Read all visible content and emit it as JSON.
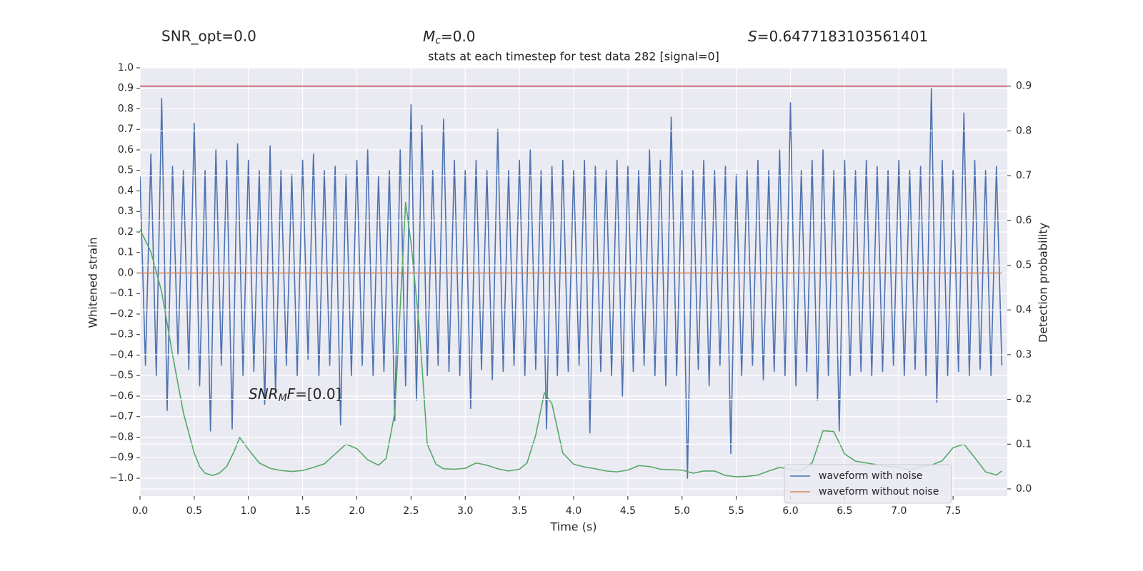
{
  "chart_data": {
    "type": "line",
    "title": "stats at each timestep for test data 282 [signal=0]",
    "xlabel": "Time (s)",
    "ylabel": "Whitened strain",
    "y2label": "Detection probability",
    "annotations": {
      "snr_opt": "SNR_opt=0.0",
      "mc": {
        "symbol": "M",
        "sub": "c",
        "text": "=0.0"
      },
      "s": {
        "symbol": "S",
        "text": "=0.6477183103561401"
      },
      "snr_mf": {
        "symbol": "SNR",
        "sub": "M",
        "symbol2": "F",
        "text": "=[0.0]"
      }
    },
    "xlim": [
      0,
      8.0
    ],
    "ylim": [
      -1.087,
      1.0
    ],
    "y2lim": [
      -0.016,
      0.941
    ],
    "grid": true,
    "legend": "lower right",
    "xticks": [
      {
        "value": 0,
        "label": "0.0"
      },
      0.5,
      {
        "value": 1,
        "label": "1.0"
      },
      1.5,
      {
        "value": 2,
        "label": "2.0"
      },
      2.5,
      {
        "value": 3,
        "label": "3.0"
      },
      3.5,
      {
        "value": 4,
        "label": "4.0"
      },
      4.5,
      {
        "value": 5,
        "label": "5.0"
      },
      5.5,
      {
        "value": 6,
        "label": "6.0"
      },
      6.5,
      {
        "value": 7,
        "label": "7.0"
      },
      7.5
    ],
    "yticks": [
      {
        "value": -1.0,
        "label": "−1.0"
      },
      {
        "value": -0.9,
        "label": "−0.9"
      },
      {
        "value": -0.8,
        "label": "−0.8"
      },
      {
        "value": -0.7,
        "label": "−0.7"
      },
      {
        "value": -0.6,
        "label": "−0.6"
      },
      {
        "value": -0.5,
        "label": "−0.5"
      },
      {
        "value": -0.4,
        "label": "−0.4"
      },
      {
        "value": -0.3,
        "label": "−0.3"
      },
      {
        "value": -0.2,
        "label": "−0.2"
      },
      {
        "value": -0.1,
        "label": "−0.1"
      },
      {
        "value": 0,
        "label": "0.0"
      },
      0.1,
      0.2,
      0.3,
      0.4,
      0.5,
      0.6,
      0.7,
      0.8,
      0.9,
      {
        "value": 1.0,
        "label": "1.0"
      }
    ],
    "y2ticks": [
      {
        "value": 0,
        "label": "0.0"
      },
      0.1,
      0.2,
      0.3,
      0.4,
      0.5,
      0.6,
      0.7,
      0.8,
      0.9
    ],
    "hline": {
      "value": 0.9,
      "axis": "y2",
      "color": "#c44e52"
    },
    "series": [
      {
        "name": "waveform with noise",
        "color": "#4c72b0",
        "x": [
          0,
          0.05,
          0.1,
          0.15,
          0.2,
          0.25,
          0.3,
          0.35,
          0.4,
          0.45,
          0.5,
          0.55,
          0.6,
          0.65,
          0.7,
          0.75,
          0.8,
          0.85,
          0.9,
          0.95,
          1,
          1.05,
          1.1,
          1.15,
          1.2,
          1.25,
          1.3,
          1.35,
          1.4,
          1.45,
          1.5,
          1.55,
          1.6,
          1.65,
          1.7,
          1.75,
          1.8,
          1.85,
          1.9,
          1.95,
          2,
          2.05,
          2.1,
          2.15,
          2.2,
          2.25,
          2.3,
          2.35,
          2.4,
          2.45,
          2.5,
          2.55,
          2.6,
          2.65,
          2.7,
          2.75,
          2.8,
          2.85,
          2.9,
          2.95,
          3,
          3.05,
          3.1,
          3.15,
          3.2,
          3.25,
          3.3,
          3.35,
          3.4,
          3.45,
          3.5,
          3.55,
          3.6,
          3.65,
          3.7,
          3.75,
          3.8,
          3.85,
          3.9,
          3.95,
          4,
          4.05,
          4.1,
          4.15,
          4.2,
          4.25,
          4.3,
          4.35,
          4.4,
          4.45,
          4.5,
          4.55,
          4.6,
          4.65,
          4.7,
          4.75,
          4.8,
          4.85,
          4.9,
          4.95,
          5,
          5.05,
          5.1,
          5.15,
          5.2,
          5.25,
          5.3,
          5.35,
          5.4,
          5.45,
          5.5,
          5.55,
          5.6,
          5.65,
          5.7,
          5.75,
          5.8,
          5.85,
          5.9,
          5.95,
          6,
          6.05,
          6.1,
          6.15,
          6.2,
          6.25,
          6.3,
          6.35,
          6.4,
          6.45,
          6.5,
          6.55,
          6.6,
          6.65,
          6.7,
          6.75,
          6.8,
          6.85,
          6.9,
          6.95,
          7,
          7.05,
          7.1,
          7.15,
          7.2,
          7.25,
          7.3,
          7.35,
          7.4,
          7.45,
          7.5,
          7.55,
          7.6,
          7.65,
          7.7,
          7.75,
          7.8,
          7.85,
          7.9,
          7.95
        ],
        "values": [
          0.47,
          -0.45,
          0.58,
          -0.5,
          0.85,
          -0.67,
          0.52,
          -0.4,
          0.5,
          -0.47,
          0.73,
          -0.55,
          0.5,
          -0.77,
          0.6,
          -0.45,
          0.55,
          -0.76,
          0.63,
          -0.5,
          0.55,
          -0.48,
          0.5,
          -0.64,
          0.62,
          -0.58,
          0.5,
          -0.45,
          0.48,
          -0.5,
          0.55,
          -0.42,
          0.58,
          -0.5,
          0.5,
          -0.45,
          0.52,
          -0.74,
          0.48,
          -0.5,
          0.55,
          -0.45,
          0.6,
          -0.5,
          0.47,
          -0.48,
          0.5,
          -0.72,
          0.6,
          -0.55,
          0.82,
          -0.62,
          0.72,
          -0.5,
          0.5,
          -0.45,
          0.75,
          -0.48,
          0.55,
          -0.5,
          0.5,
          -0.66,
          0.55,
          -0.47,
          0.5,
          -0.52,
          0.7,
          -0.48,
          0.5,
          -0.45,
          0.55,
          -0.5,
          0.6,
          -0.47,
          0.5,
          -0.76,
          0.52,
          -0.5,
          0.55,
          -0.48,
          0.5,
          -0.45,
          0.55,
          -0.78,
          0.52,
          -0.48,
          0.5,
          -0.5,
          0.55,
          -0.6,
          0.52,
          -0.48,
          0.5,
          -0.45,
          0.6,
          -0.5,
          0.55,
          -0.55,
          0.76,
          -0.5,
          0.5,
          -1.0,
          0.5,
          -0.47,
          0.55,
          -0.55,
          0.5,
          -0.45,
          0.52,
          -0.88,
          0.48,
          -0.5,
          0.5,
          -0.45,
          0.55,
          -0.52,
          0.5,
          -0.48,
          0.6,
          -0.5,
          0.83,
          -0.55,
          0.5,
          -0.48,
          0.55,
          -0.62,
          0.6,
          -0.5,
          0.5,
          -0.77,
          0.55,
          -0.5,
          0.5,
          -0.48,
          0.55,
          -0.5,
          0.52,
          -0.48,
          0.5,
          -0.45,
          0.55,
          -0.5,
          0.5,
          -0.47,
          0.52,
          -0.5,
          0.9,
          -0.63,
          0.55,
          -0.5,
          0.5,
          -0.48,
          0.78,
          -0.5,
          0.55,
          -0.47,
          0.5,
          -0.5,
          0.52,
          -0.45
        ]
      },
      {
        "name": "waveform without noise",
        "color": "#dd8452",
        "x": [
          0,
          7.95
        ],
        "values": [
          0,
          0
        ]
      },
      {
        "color": "#55a868",
        "axis": "y2",
        "x": [
          0,
          0.1,
          0.2,
          0.3,
          0.4,
          0.5,
          0.55,
          0.6,
          0.67,
          0.73,
          0.8,
          0.87,
          0.92,
          1.0,
          1.1,
          1.2,
          1.3,
          1.4,
          1.5,
          1.6,
          1.7,
          1.8,
          1.9,
          2.0,
          2.1,
          2.2,
          2.27,
          2.35,
          2.45,
          2.5,
          2.58,
          2.65,
          2.73,
          2.8,
          2.9,
          3.0,
          3.1,
          3.2,
          3.3,
          3.4,
          3.5,
          3.57,
          3.65,
          3.73,
          3.8,
          3.9,
          4.0,
          4.1,
          4.2,
          4.3,
          4.4,
          4.5,
          4.6,
          4.7,
          4.8,
          4.9,
          5.0,
          5.1,
          5.2,
          5.3,
          5.4,
          5.5,
          5.6,
          5.7,
          5.8,
          5.9,
          6.0,
          6.1,
          6.2,
          6.3,
          6.4,
          6.5,
          6.6,
          6.7,
          6.8,
          6.9,
          7.0,
          7.1,
          7.2,
          7.3,
          7.4,
          7.5,
          7.6,
          7.7,
          7.8,
          7.9,
          7.95
        ],
        "values": [
          0.58,
          0.53,
          0.44,
          0.3,
          0.17,
          0.08,
          0.05,
          0.035,
          0.03,
          0.035,
          0.05,
          0.085,
          0.115,
          0.088,
          0.058,
          0.046,
          0.041,
          0.039,
          0.041,
          0.048,
          0.056,
          0.078,
          0.1,
          0.09,
          0.065,
          0.053,
          0.068,
          0.17,
          0.64,
          0.55,
          0.35,
          0.1,
          0.055,
          0.045,
          0.044,
          0.046,
          0.058,
          0.053,
          0.045,
          0.04,
          0.044,
          0.058,
          0.12,
          0.215,
          0.19,
          0.08,
          0.055,
          0.049,
          0.045,
          0.04,
          0.038,
          0.042,
          0.052,
          0.05,
          0.044,
          0.043,
          0.042,
          0.035,
          0.04,
          0.04,
          0.03,
          0.027,
          0.028,
          0.031,
          0.04,
          0.048,
          0.044,
          0.04,
          0.058,
          0.13,
          0.128,
          0.078,
          0.062,
          0.058,
          0.054,
          0.05,
          0.049,
          0.042,
          0.05,
          0.053,
          0.063,
          0.092,
          0.1,
          0.07,
          0.038,
          0.031,
          0.04
        ]
      }
    ]
  }
}
